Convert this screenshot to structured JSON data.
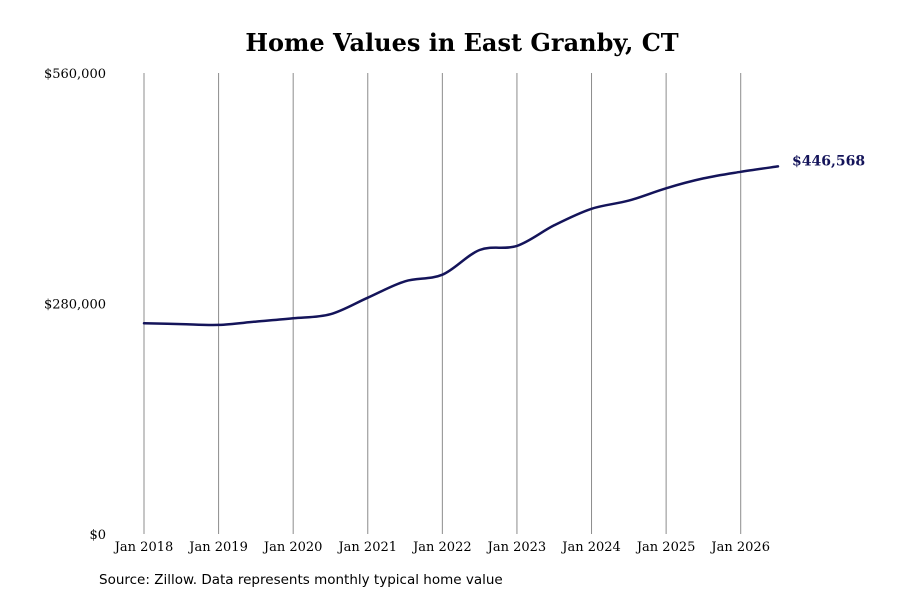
{
  "chart_data": {
    "type": "line",
    "title": "Home Values in East Granby, CT",
    "xlabel": "",
    "ylabel": "",
    "xlim": [
      "2018-01",
      "2026-07"
    ],
    "ylim": [
      0,
      560000
    ],
    "yticks": [
      0,
      280000,
      560000
    ],
    "ytick_labels": [
      "$0",
      "$280,000",
      "$560,000"
    ],
    "xtick_labels": [
      "Jan 2018",
      "Jan 2019",
      "Jan 2020",
      "Jan 2021",
      "Jan 2022",
      "Jan 2023",
      "Jan 2024",
      "Jan 2025",
      "Jan 2026"
    ],
    "grid": "vertical",
    "series": [
      {
        "color": "#14145a",
        "points": [
          [
            "2018-01",
            256000
          ],
          [
            "2018-07",
            255000
          ],
          [
            "2019-01",
            254000
          ],
          [
            "2019-07",
            258000
          ],
          [
            "2020-01",
            262000
          ],
          [
            "2020-07",
            267000
          ],
          [
            "2021-01",
            287000
          ],
          [
            "2021-07",
            307000
          ],
          [
            "2022-01",
            315000
          ],
          [
            "2022-07",
            345000
          ],
          [
            "2023-01",
            350000
          ],
          [
            "2023-07",
            375000
          ],
          [
            "2024-01",
            395000
          ],
          [
            "2024-07",
            405000
          ],
          [
            "2025-01",
            420000
          ],
          [
            "2025-07",
            432000
          ],
          [
            "2026-01",
            440000
          ],
          [
            "2026-07",
            446568
          ]
        ]
      }
    ],
    "end_label": "$446,568"
  },
  "source_note": "Source: Zillow. Data represents monthly typical home value"
}
